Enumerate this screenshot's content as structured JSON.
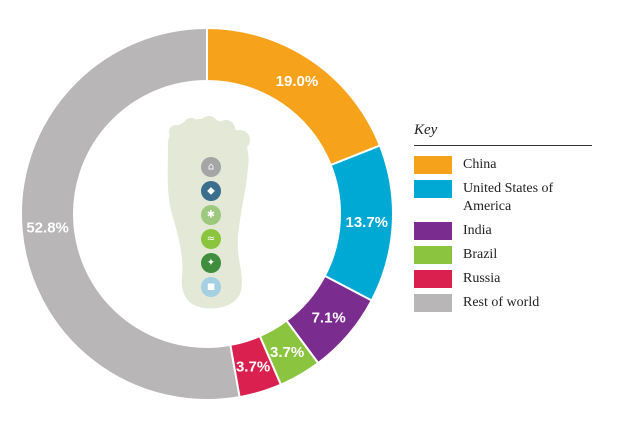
{
  "chart_data": {
    "type": "pie",
    "donut": true,
    "legend_title": "Key",
    "legend_position": "right",
    "slices": [
      {
        "label": "China",
        "value": 19.0,
        "display": "19.0%",
        "color": "#F7A21B"
      },
      {
        "label": "United States of America",
        "value": 13.7,
        "display": "13.7%",
        "color": "#00A9D4"
      },
      {
        "label": "India",
        "value": 7.1,
        "display": "7.1%",
        "color": "#7B2C8F"
      },
      {
        "label": "Brazil",
        "value": 3.7,
        "display": "3.7%",
        "color": "#8BC53F"
      },
      {
        "label": "Russia",
        "value": 3.7,
        "display": "3.7%",
        "color": "#D9204E"
      },
      {
        "label": "Rest of world",
        "value": 52.8,
        "display": "52.8%",
        "color": "#B8B6B6"
      }
    ]
  },
  "legend_labels": [
    "China",
    "United States of America",
    "India",
    "Brazil",
    "Russia",
    "Rest of world"
  ],
  "center_icon": {
    "name": "footprint-icon",
    "color": "#E4E8D7",
    "icons": [
      "house-icon",
      "cow-icon",
      "crops-icon",
      "fish-icon",
      "leaf-icon",
      "sea-icon"
    ]
  }
}
